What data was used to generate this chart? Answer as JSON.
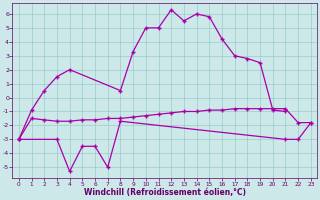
{
  "bg_color": "#cce8e8",
  "line_color": "#aa00aa",
  "grid_color": "#99cccc",
  "tick_color": "#660066",
  "xlabel": "Windchill (Refroidissement éolien,°C)",
  "ylim": [
    -5.8,
    6.8
  ],
  "xlim": [
    -0.5,
    23.5
  ],
  "yticks": [
    -5,
    -4,
    -3,
    -2,
    -1,
    0,
    1,
    2,
    3,
    4,
    5,
    6
  ],
  "xticks": [
    0,
    1,
    2,
    3,
    4,
    5,
    6,
    7,
    8,
    9,
    10,
    11,
    12,
    13,
    14,
    15,
    16,
    17,
    18,
    19,
    20,
    21,
    22,
    23
  ],
  "line1_x": [
    0,
    1,
    2,
    3,
    4,
    8,
    9,
    10,
    11,
    12,
    13,
    14,
    15,
    16,
    17,
    18,
    19,
    20,
    21
  ],
  "line1_y": [
    -3.0,
    -0.9,
    0.5,
    1.5,
    2.0,
    0.5,
    3.3,
    5.0,
    5.0,
    6.3,
    5.5,
    6.0,
    5.8,
    4.2,
    3.0,
    2.8,
    2.5,
    -0.9,
    -1.0
  ],
  "line2_x": [
    0,
    1,
    2,
    3,
    4,
    5,
    6,
    7,
    8,
    9,
    10,
    11,
    12,
    13,
    14,
    15,
    16,
    17,
    18,
    19,
    20,
    21,
    22,
    23
  ],
  "line2_y": [
    -3.0,
    -1.5,
    -1.6,
    -1.7,
    -1.7,
    -1.6,
    -1.6,
    -1.5,
    -1.5,
    -1.4,
    -1.3,
    -1.2,
    -1.1,
    -1.0,
    -1.0,
    -0.9,
    -0.9,
    -0.8,
    -0.8,
    -0.8,
    -0.8,
    -0.8,
    -1.8,
    -1.8
  ],
  "line3_x": [
    0,
    3,
    4,
    5,
    6,
    7,
    8,
    21,
    22,
    23
  ],
  "line3_y": [
    -3.0,
    -3.0,
    -5.3,
    -3.5,
    -3.5,
    -5.0,
    -1.7,
    -3.0,
    -3.0,
    -1.8
  ]
}
